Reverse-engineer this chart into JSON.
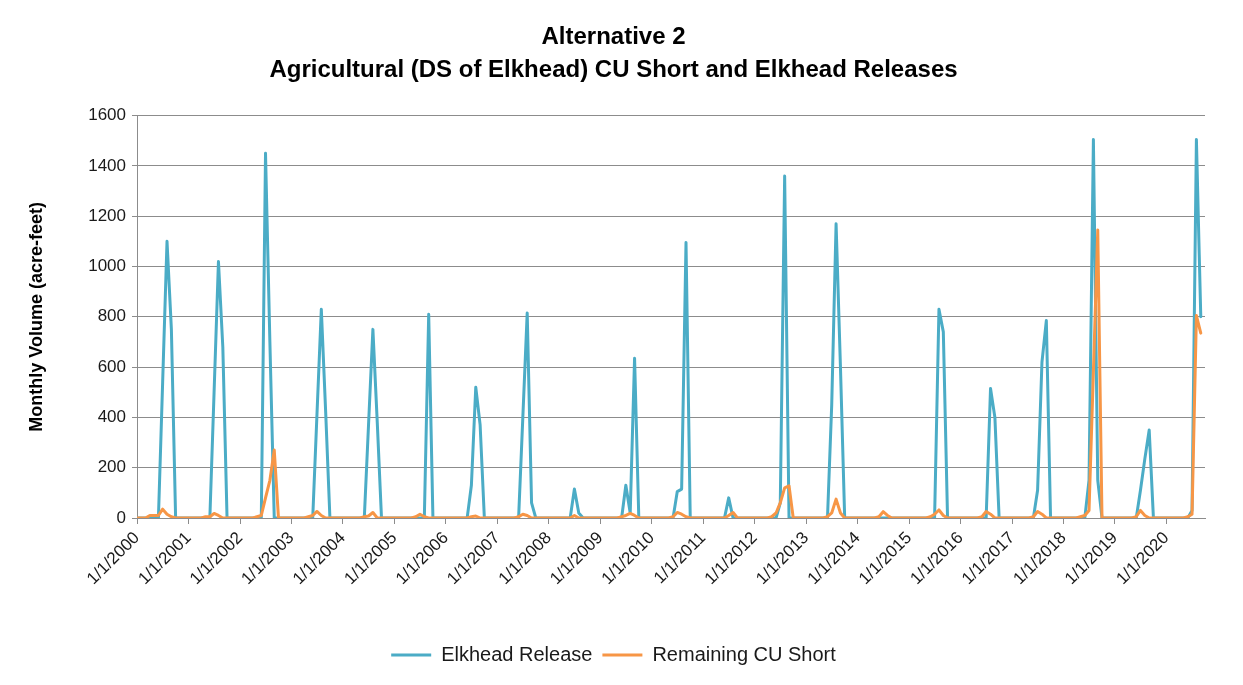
{
  "chart_data": {
    "type": "line",
    "title": "Alternative 2",
    "subtitle": "Agricultural (DS of Elkhead) CU Short and Elkhead Releases",
    "ylabel": "Monthly Volume (acre-feet)",
    "x": [
      "2000-01",
      "2000-02",
      "2000-03",
      "2000-04",
      "2000-05",
      "2000-06",
      "2000-07",
      "2000-08",
      "2000-09",
      "2000-10",
      "2000-11",
      "2000-12",
      "2001-01",
      "2001-02",
      "2001-03",
      "2001-04",
      "2001-05",
      "2001-06",
      "2001-07",
      "2001-08",
      "2001-09",
      "2001-10",
      "2001-11",
      "2001-12",
      "2002-01",
      "2002-02",
      "2002-03",
      "2002-04",
      "2002-05",
      "2002-06",
      "2002-07",
      "2002-08",
      "2002-09",
      "2002-10",
      "2002-11",
      "2002-12",
      "2003-01",
      "2003-02",
      "2003-03",
      "2003-04",
      "2003-05",
      "2003-06",
      "2003-07",
      "2003-08",
      "2003-09",
      "2003-10",
      "2003-11",
      "2003-12",
      "2004-01",
      "2004-02",
      "2004-03",
      "2004-04",
      "2004-05",
      "2004-06",
      "2004-07",
      "2004-08",
      "2004-09",
      "2004-10",
      "2004-11",
      "2004-12",
      "2005-01",
      "2005-02",
      "2005-03",
      "2005-04",
      "2005-05",
      "2005-06",
      "2005-07",
      "2005-08",
      "2005-09",
      "2005-10",
      "2005-11",
      "2005-12",
      "2006-01",
      "2006-02",
      "2006-03",
      "2006-04",
      "2006-05",
      "2006-06",
      "2006-07",
      "2006-08",
      "2006-09",
      "2006-10",
      "2006-11",
      "2006-12",
      "2007-01",
      "2007-02",
      "2007-03",
      "2007-04",
      "2007-05",
      "2007-06",
      "2007-07",
      "2007-08",
      "2007-09",
      "2007-10",
      "2007-11",
      "2007-12",
      "2008-01",
      "2008-02",
      "2008-03",
      "2008-04",
      "2008-05",
      "2008-06",
      "2008-07",
      "2008-08",
      "2008-09",
      "2008-10",
      "2008-11",
      "2008-12",
      "2009-01",
      "2009-02",
      "2009-03",
      "2009-04",
      "2009-05",
      "2009-06",
      "2009-07",
      "2009-08",
      "2009-09",
      "2009-10",
      "2009-11",
      "2009-12",
      "2010-01",
      "2010-02",
      "2010-03",
      "2010-04",
      "2010-05",
      "2010-06",
      "2010-07",
      "2010-08",
      "2010-09",
      "2010-10",
      "2010-11",
      "2010-12",
      "2011-01",
      "2011-02",
      "2011-03",
      "2011-04",
      "2011-05",
      "2011-06",
      "2011-07",
      "2011-08",
      "2011-09",
      "2011-10",
      "2011-11",
      "2011-12",
      "2012-01",
      "2012-02",
      "2012-03",
      "2012-04",
      "2012-05",
      "2012-06",
      "2012-07",
      "2012-08",
      "2012-09",
      "2012-10",
      "2012-11",
      "2012-12",
      "2013-01",
      "2013-02",
      "2013-03",
      "2013-04",
      "2013-05",
      "2013-06",
      "2013-07",
      "2013-08",
      "2013-09",
      "2013-10",
      "2013-11",
      "2013-12",
      "2014-01",
      "2014-02",
      "2014-03",
      "2014-04",
      "2014-05",
      "2014-06",
      "2014-07",
      "2014-08",
      "2014-09",
      "2014-10",
      "2014-11",
      "2014-12",
      "2015-01",
      "2015-02",
      "2015-03",
      "2015-04",
      "2015-05",
      "2015-06",
      "2015-07",
      "2015-08",
      "2015-09",
      "2015-10",
      "2015-11",
      "2015-12",
      "2016-01",
      "2016-02",
      "2016-03",
      "2016-04",
      "2016-05",
      "2016-06",
      "2016-07",
      "2016-08",
      "2016-09",
      "2016-10",
      "2016-11",
      "2016-12",
      "2017-01",
      "2017-02",
      "2017-03",
      "2017-04",
      "2017-05",
      "2017-06",
      "2017-07",
      "2017-08",
      "2017-09",
      "2017-10",
      "2017-11",
      "2017-12",
      "2018-01",
      "2018-02",
      "2018-03",
      "2018-04",
      "2018-05",
      "2018-06",
      "2018-07",
      "2018-08",
      "2018-09",
      "2018-10",
      "2018-11",
      "2018-12",
      "2019-01",
      "2019-02",
      "2019-03",
      "2019-04",
      "2019-05",
      "2019-06",
      "2019-07",
      "2019-08",
      "2019-09",
      "2019-10",
      "2019-11",
      "2019-12",
      "2020-01",
      "2020-02",
      "2020-03",
      "2020-04",
      "2020-05",
      "2020-06",
      "2020-07",
      "2020-08",
      "2020-09"
    ],
    "series": [
      {
        "name": "Elkhead Release",
        "color": "#4bacc6",
        "values": [
          0,
          0,
          0,
          0,
          0,
          0,
          540,
          1100,
          750,
          0,
          0,
          0,
          0,
          0,
          0,
          0,
          0,
          0,
          500,
          1020,
          680,
          0,
          0,
          0,
          0,
          0,
          0,
          0,
          0,
          0,
          1450,
          700,
          0,
          0,
          0,
          0,
          0,
          0,
          0,
          0,
          0,
          0,
          410,
          830,
          420,
          0,
          0,
          0,
          0,
          0,
          0,
          0,
          0,
          0,
          370,
          750,
          380,
          0,
          0,
          0,
          0,
          0,
          0,
          0,
          0,
          0,
          0,
          0,
          810,
          0,
          0,
          0,
          0,
          0,
          0,
          0,
          0,
          0,
          130,
          520,
          370,
          0,
          0,
          0,
          0,
          0,
          0,
          0,
          0,
          0,
          400,
          815,
          60,
          0,
          0,
          0,
          0,
          0,
          0,
          0,
          0,
          0,
          115,
          20,
          0,
          0,
          0,
          0,
          0,
          0,
          0,
          0,
          0,
          0,
          130,
          20,
          635,
          0,
          0,
          0,
          0,
          0,
          0,
          0,
          0,
          0,
          105,
          115,
          1095,
          0,
          0,
          0,
          0,
          0,
          0,
          0,
          0,
          0,
          80,
          0,
          0,
          0,
          0,
          0,
          0,
          0,
          0,
          0,
          0,
          0,
          60,
          1360,
          0,
          0,
          0,
          0,
          0,
          0,
          0,
          0,
          0,
          0,
          450,
          1170,
          600,
          0,
          0,
          0,
          0,
          0,
          0,
          0,
          0,
          0,
          0,
          0,
          0,
          0,
          0,
          0,
          0,
          0,
          0,
          0,
          0,
          0,
          0,
          830,
          740,
          0,
          0,
          0,
          0,
          0,
          0,
          0,
          0,
          0,
          0,
          515,
          400,
          0,
          0,
          0,
          0,
          0,
          0,
          0,
          0,
          0,
          110,
          620,
          785,
          0,
          0,
          0,
          0,
          0,
          0,
          0,
          0,
          0,
          150,
          1505,
          150,
          0,
          0,
          0,
          0,
          0,
          0,
          0,
          0,
          0,
          110,
          235,
          350,
          0,
          0,
          0,
          0,
          0,
          0,
          0,
          0,
          0,
          30,
          1505,
          800
        ]
      },
      {
        "name": "Remaining CU Short",
        "color": "#f79646",
        "values": [
          0,
          0,
          0,
          10,
          10,
          10,
          35,
          15,
          5,
          0,
          0,
          0,
          0,
          0,
          0,
          0,
          5,
          5,
          18,
          10,
          0,
          0,
          0,
          0,
          0,
          0,
          0,
          0,
          5,
          10,
          80,
          150,
          270,
          0,
          0,
          0,
          0,
          0,
          0,
          0,
          5,
          10,
          26,
          10,
          0,
          0,
          0,
          0,
          0,
          0,
          0,
          0,
          0,
          5,
          8,
          22,
          0,
          0,
          0,
          0,
          0,
          0,
          0,
          0,
          0,
          5,
          15,
          5,
          0,
          0,
          0,
          0,
          0,
          0,
          0,
          0,
          0,
          0,
          5,
          8,
          0,
          0,
          0,
          0,
          0,
          0,
          0,
          0,
          0,
          5,
          15,
          10,
          0,
          0,
          0,
          0,
          0,
          0,
          0,
          0,
          0,
          0,
          10,
          0,
          0,
          0,
          0,
          0,
          0,
          0,
          0,
          0,
          0,
          5,
          10,
          18,
          10,
          0,
          0,
          0,
          0,
          0,
          0,
          0,
          0,
          5,
          22,
          15,
          5,
          0,
          0,
          0,
          0,
          0,
          0,
          0,
          0,
          0,
          10,
          22,
          0,
          0,
          0,
          0,
          0,
          0,
          0,
          0,
          5,
          20,
          60,
          120,
          128,
          0,
          0,
          0,
          0,
          0,
          0,
          0,
          0,
          5,
          20,
          75,
          20,
          0,
          0,
          0,
          0,
          0,
          0,
          0,
          0,
          5,
          25,
          10,
          0,
          0,
          0,
          0,
          0,
          0,
          0,
          0,
          0,
          5,
          15,
          32,
          10,
          0,
          0,
          0,
          0,
          0,
          0,
          0,
          0,
          5,
          26,
          15,
          0,
          0,
          0,
          0,
          0,
          0,
          0,
          0,
          0,
          5,
          26,
          15,
          0,
          0,
          0,
          0,
          0,
          0,
          0,
          0,
          5,
          10,
          30,
          580,
          1145,
          0,
          0,
          0,
          0,
          0,
          0,
          0,
          0,
          5,
          30,
          10,
          0,
          0,
          0,
          0,
          0,
          0,
          0,
          0,
          0,
          5,
          15,
          805,
          735
        ]
      }
    ],
    "xlim": [
      "2000-01-01",
      "2020-10-01"
    ],
    "xticks": [
      {
        "value": "2000-01-01",
        "label": "1/1/2000"
      },
      {
        "value": "2001-01-01",
        "label": "1/1/2001"
      },
      {
        "value": "2002-01-01",
        "label": "1/1/2002"
      },
      {
        "value": "2003-01-01",
        "label": "1/1/2003"
      },
      {
        "value": "2004-01-01",
        "label": "1/1/2004"
      },
      {
        "value": "2005-01-01",
        "label": "1/1/2005"
      },
      {
        "value": "2006-01-01",
        "label": "1/1/2006"
      },
      {
        "value": "2007-01-01",
        "label": "1/1/2007"
      },
      {
        "value": "2008-01-01",
        "label": "1/1/2008"
      },
      {
        "value": "2009-01-01",
        "label": "1/1/2009"
      },
      {
        "value": "2010-01-01",
        "label": "1/1/2010"
      },
      {
        "value": "2011-01-01",
        "label": "1/1/2011"
      },
      {
        "value": "2012-01-01",
        "label": "1/1/2012"
      },
      {
        "value": "2013-01-01",
        "label": "1/1/2013"
      },
      {
        "value": "2014-01-01",
        "label": "1/1/2014"
      },
      {
        "value": "2015-01-01",
        "label": "1/1/2015"
      },
      {
        "value": "2016-01-01",
        "label": "1/1/2016"
      },
      {
        "value": "2017-01-01",
        "label": "1/1/2017"
      },
      {
        "value": "2018-01-01",
        "label": "1/1/2018"
      },
      {
        "value": "2019-01-01",
        "label": "1/1/2019"
      },
      {
        "value": "2020-01-01",
        "label": "1/1/2020"
      }
    ],
    "ylim": [
      0,
      1600
    ],
    "yticks": [
      0,
      200,
      400,
      600,
      800,
      1000,
      1200,
      1400,
      1600
    ],
    "grid": "y",
    "legend": "bottom",
    "marker": "none"
  }
}
